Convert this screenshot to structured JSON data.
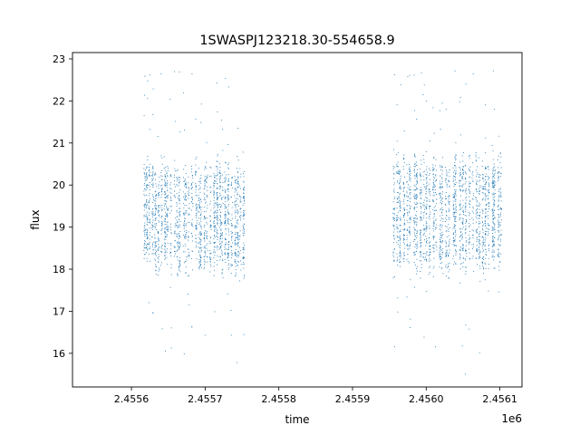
{
  "chart_data": {
    "type": "scatter",
    "title": "1SWASPJ123218.30-554658.9",
    "xlabel": "time",
    "ylabel": "flux",
    "x_offset_label": "1e6",
    "xlim": [
      2.45552,
      2.45613
    ],
    "ylim": [
      15.2,
      23.15
    ],
    "x_ticks": [
      2.4556,
      2.4557,
      2.4558,
      2.4559,
      2.456,
      2.4561
    ],
    "x_tick_labels": [
      "2.4556",
      "2.4557",
      "2.4558",
      "2.4559",
      "2.4560",
      "2.4561"
    ],
    "y_ticks": [
      16,
      17,
      18,
      19,
      20,
      21,
      22,
      23
    ],
    "y_tick_labels": [
      "16",
      "17",
      "18",
      "19",
      "20",
      "21",
      "22",
      "23"
    ],
    "grid": false,
    "marker_color": "#1f77b4",
    "series": [
      {
        "segments": [
          {
            "x_range": [
              2.455615,
              2.455755
            ],
            "flux_band": [
              18.0,
              20.5
            ],
            "extremes": [
              15.7,
              22.75
            ]
          },
          {
            "x_range": [
              2.455955,
              2.456105
            ],
            "flux_band": [
              18.0,
              20.7
            ],
            "extremes": [
              15.5,
              22.8
            ]
          }
        ]
      }
    ]
  }
}
